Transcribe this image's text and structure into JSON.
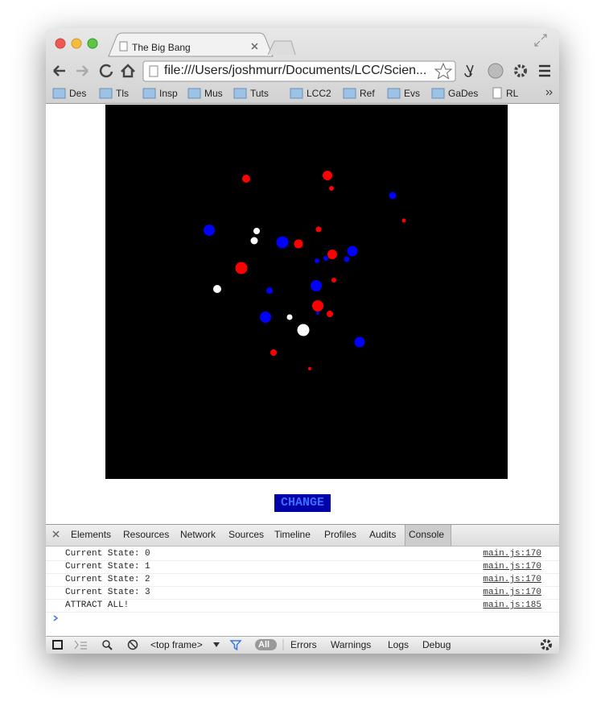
{
  "tab": {
    "title": "The Big Bang"
  },
  "address_bar": {
    "url": "file:///Users/joshmurr/Documents/LCC/Scien..."
  },
  "bookmarks": [
    "Des",
    "Tls",
    "Insp",
    "Mus",
    "Tuts",
    "LCC2",
    "Ref",
    "Evs",
    "GaDes",
    "RL"
  ],
  "page": {
    "button": "CHANGE"
  },
  "devtools": {
    "tabs": [
      "Elements",
      "Resources",
      "Network",
      "Sources",
      "Timeline",
      "Profiles",
      "Audits",
      "Console"
    ],
    "console": [
      {
        "message": "Current State: 0",
        "source": "main.js:170"
      },
      {
        "message": "Current State: 1",
        "source": "main.js:170"
      },
      {
        "message": "Current State: 2",
        "source": "main.js:170"
      },
      {
        "message": "Current State: 3",
        "source": "main.js:170"
      },
      {
        "message": "ATTRACT ALL!",
        "source": "main.js:185"
      }
    ],
    "toolbar": {
      "frame": "<top frame>",
      "filter": "All",
      "levels": [
        "Errors",
        "Warnings",
        "Logs",
        "Debug"
      ]
    }
  }
}
